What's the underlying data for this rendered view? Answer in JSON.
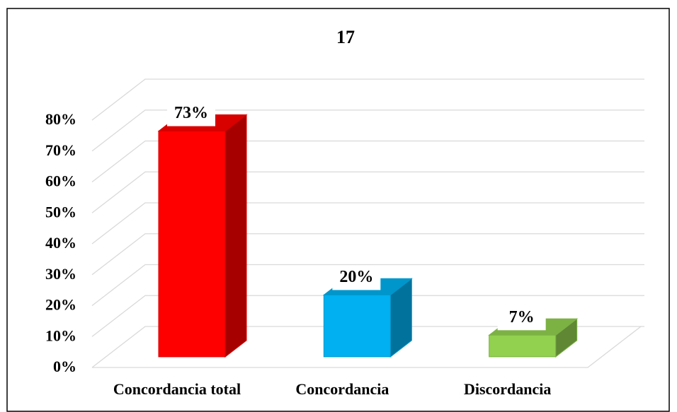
{
  "chart_data": {
    "type": "bar3d",
    "title": "17",
    "categories": [
      "Concordancia total",
      "Concordancia",
      "Discordancia"
    ],
    "values": [
      73,
      20,
      7
    ],
    "value_labels": [
      "73%",
      "20%",
      "7%"
    ],
    "colors": [
      "#ff0000",
      "#00b0f0",
      "#92d050"
    ],
    "ylim": [
      0,
      80
    ],
    "yticks": [
      {
        "value": 0,
        "label": "0%"
      },
      {
        "value": 10,
        "label": "10%"
      },
      {
        "value": 20,
        "label": "20%"
      },
      {
        "value": 30,
        "label": "30%"
      },
      {
        "value": 40,
        "label": "40%"
      },
      {
        "value": 50,
        "label": "50%"
      },
      {
        "value": 60,
        "label": "60%"
      },
      {
        "value": 70,
        "label": "70%"
      },
      {
        "value": 80,
        "label": "80%"
      }
    ],
    "grid": true
  }
}
